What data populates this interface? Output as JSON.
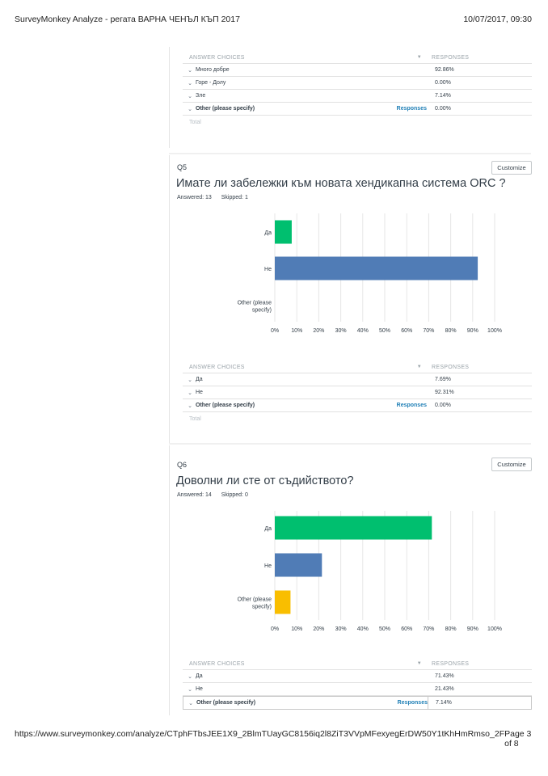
{
  "print": {
    "title": "SurveyMonkey Analyze - регата ВАРНА ЧЕНЪЛ КЪП 2017",
    "datetime": "10/07/2017, 09:30",
    "url": "https://www.surveymonkey.com/analyze/CTphFTbsJEE1X9_2BlmTUayGC8156iq2l8ZiT3VVpMFexyegErDW50Y1tKhHmRmso_2F",
    "page": "Page 3 of 8"
  },
  "table_headers": {
    "choices": "ANSWER CHOICES",
    "responses": "RESPONSES",
    "total": "Total",
    "responses_link": "Responses"
  },
  "q4_table": {
    "rows": [
      {
        "label": "Много добре",
        "value": "92.86%"
      },
      {
        "label": "Горе - Долу",
        "value": "0.00%"
      },
      {
        "label": "Зле",
        "value": "7.14%"
      }
    ],
    "other": {
      "label": "Other (please specify)",
      "value": "0.00%"
    }
  },
  "q5": {
    "number": "Q5",
    "title": "Имате ли забележки към новата хендикапна система ORC ?",
    "answered": "Answered: 13",
    "skipped": "Skipped: 1",
    "customize": "Customize",
    "table": {
      "rows": [
        {
          "label": "Да",
          "value": "7.69%"
        },
        {
          "label": "Не",
          "value": "92.31%"
        }
      ],
      "other": {
        "label": "Other (please specify)",
        "value": "0.00%"
      }
    }
  },
  "q6": {
    "number": "Q6",
    "title": "Доволни ли сте от съдийството?",
    "answered": "Answered: 14",
    "skipped": "Skipped: 0",
    "customize": "Customize",
    "table": {
      "rows": [
        {
          "label": "Да",
          "value": "71.43%"
        },
        {
          "label": "Не",
          "value": "21.43%"
        }
      ],
      "other": {
        "label": "Other (please specify)",
        "value": "7.14%"
      }
    }
  },
  "colors": {
    "green": "#00bf6f",
    "blue": "#507cb6",
    "yellow": "#f9be00",
    "grid": "#e6e6e6"
  },
  "chart_data": [
    {
      "type": "bar",
      "orientation": "horizontal",
      "categories": [
        "Да",
        "Не",
        "Other (please specify)"
      ],
      "values": [
        7.69,
        92.31,
        0.0
      ],
      "bar_colors": [
        "#00bf6f",
        "#507cb6",
        "#f9be00"
      ],
      "xlim": [
        0,
        100
      ],
      "xticks": [
        "0%",
        "10%",
        "20%",
        "30%",
        "40%",
        "50%",
        "60%",
        "70%",
        "80%",
        "90%",
        "100%"
      ],
      "grid": true
    },
    {
      "type": "bar",
      "orientation": "horizontal",
      "categories": [
        "Да",
        "Не",
        "Other (please specify)"
      ],
      "values": [
        71.43,
        21.43,
        7.14
      ],
      "bar_colors": [
        "#00bf6f",
        "#507cb6",
        "#f9be00"
      ],
      "xlim": [
        0,
        100
      ],
      "xticks": [
        "0%",
        "10%",
        "20%",
        "30%",
        "40%",
        "50%",
        "60%",
        "70%",
        "80%",
        "90%",
        "100%"
      ],
      "grid": true
    }
  ]
}
